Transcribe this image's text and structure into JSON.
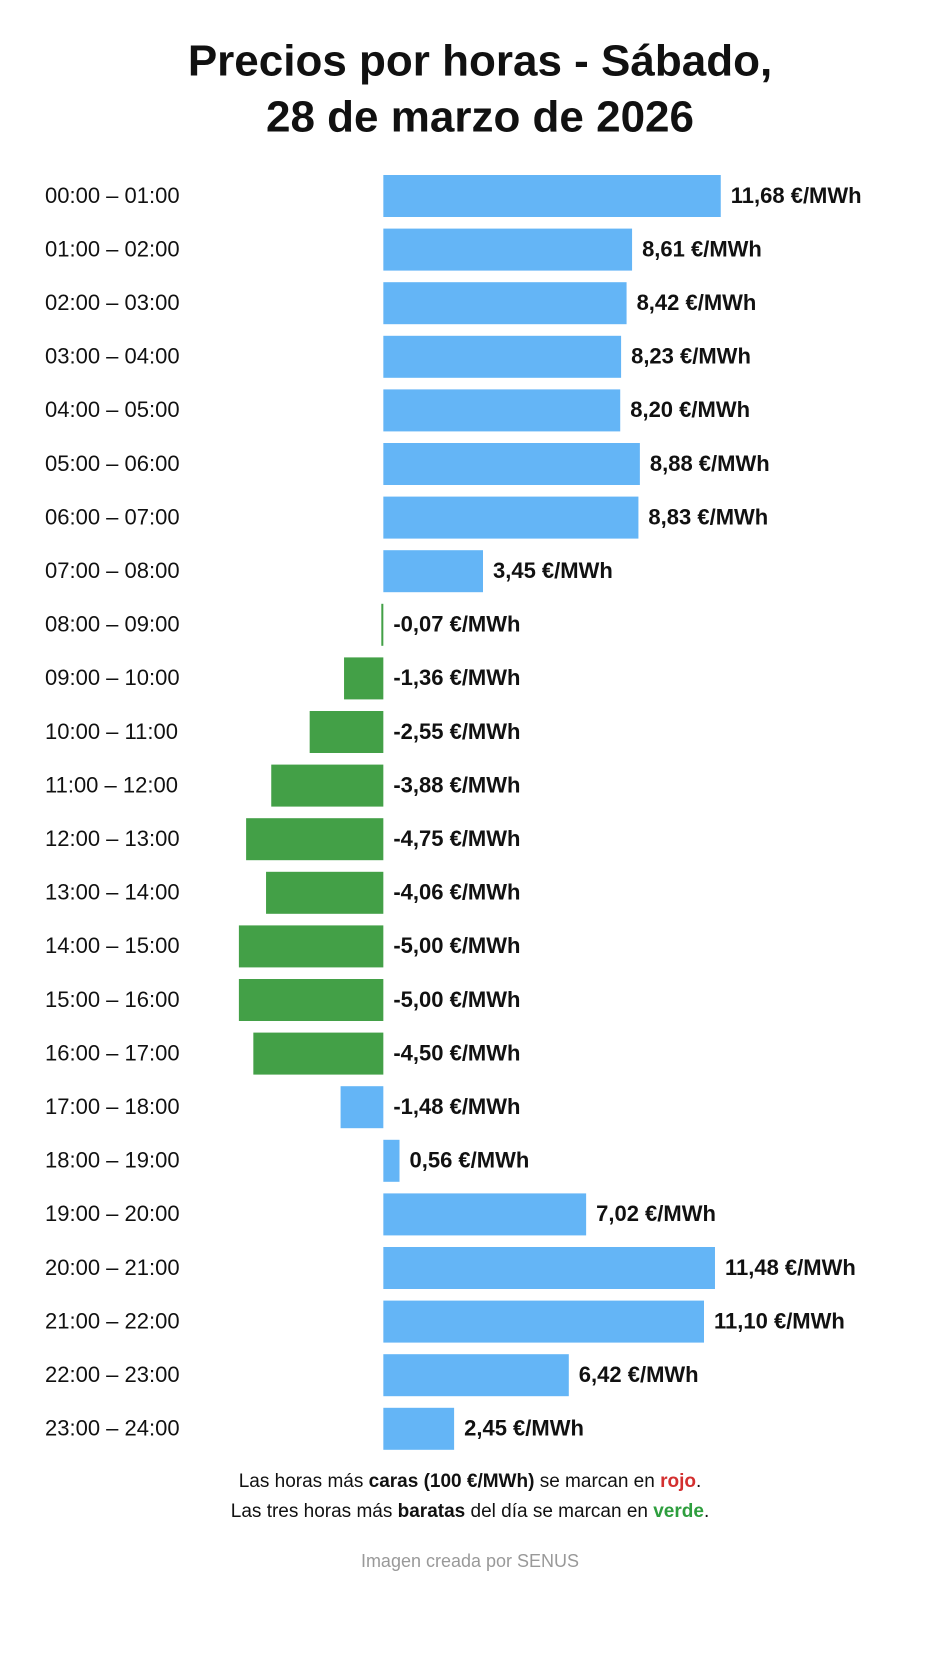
{
  "chart_data": {
    "type": "bar",
    "orientation": "horizontal",
    "title": [
      "Precios por horas - Sábado,",
      "28 de marzo de 2026"
    ],
    "categories": [
      "00:00 – 01:00",
      "01:00 – 02:00",
      "02:00 – 03:00",
      "03:00 – 04:00",
      "04:00 – 05:00",
      "05:00 – 06:00",
      "06:00 – 07:00",
      "07:00 – 08:00",
      "08:00 – 09:00",
      "09:00 – 10:00",
      "10:00 – 11:00",
      "11:00 – 12:00",
      "12:00 – 13:00",
      "13:00 – 14:00",
      "14:00 – 15:00",
      "15:00 – 16:00",
      "16:00 – 17:00",
      "17:00 – 18:00",
      "18:00 – 19:00",
      "19:00 – 20:00",
      "20:00 – 21:00",
      "21:00 – 22:00",
      "22:00 – 23:00",
      "23:00 – 24:00"
    ],
    "values": [
      11.68,
      8.61,
      8.42,
      8.23,
      8.2,
      8.88,
      8.83,
      3.45,
      -0.07,
      -1.36,
      -2.55,
      -3.88,
      -4.75,
      -4.06,
      -5.0,
      -5.0,
      -4.5,
      -1.48,
      0.56,
      7.02,
      11.48,
      11.1,
      6.42,
      2.45
    ],
    "value_labels": [
      "11,68 €/MWh",
      "8,61 €/MWh",
      "8,42 €/MWh",
      "8,23 €/MWh",
      "8,20 €/MWh",
      "8,88 €/MWh",
      "8,83 €/MWh",
      "3,45 €/MWh",
      "-0,07 €/MWh",
      "-1,36 €/MWh",
      "-2,55 €/MWh",
      "-3,88 €/MWh",
      "-4,75 €/MWh",
      "-4,06 €/MWh",
      "-5,00 €/MWh",
      "-5,00 €/MWh",
      "-4,50 €/MWh",
      "-1,48 €/MWh",
      "0,56 €/MWh",
      "7,02 €/MWh",
      "11,48 €/MWh",
      "11,10 €/MWh",
      "6,42 €/MWh",
      "2,45 €/MWh"
    ],
    "bar_colors": [
      "#64b5f6",
      "#64b5f6",
      "#64b5f6",
      "#64b5f6",
      "#64b5f6",
      "#64b5f6",
      "#64b5f6",
      "#64b5f6",
      "#43a047",
      "#43a047",
      "#43a047",
      "#43a047",
      "#43a047",
      "#43a047",
      "#43a047",
      "#43a047",
      "#43a047",
      "#64b5f6",
      "#64b5f6",
      "#64b5f6",
      "#64b5f6",
      "#64b5f6",
      "#64b5f6",
      "#64b5f6"
    ],
    "xlim": [
      -6,
      12
    ],
    "footnote": [
      [
        "Las horas más ",
        "caras (100 €/MWh)",
        " se marcan en ",
        "rojo",
        "."
      ],
      [
        "Las tres horas más ",
        "baratas",
        " del día se marcan en ",
        "verde",
        "."
      ]
    ],
    "credit": "Imagen creada por SENUS"
  }
}
